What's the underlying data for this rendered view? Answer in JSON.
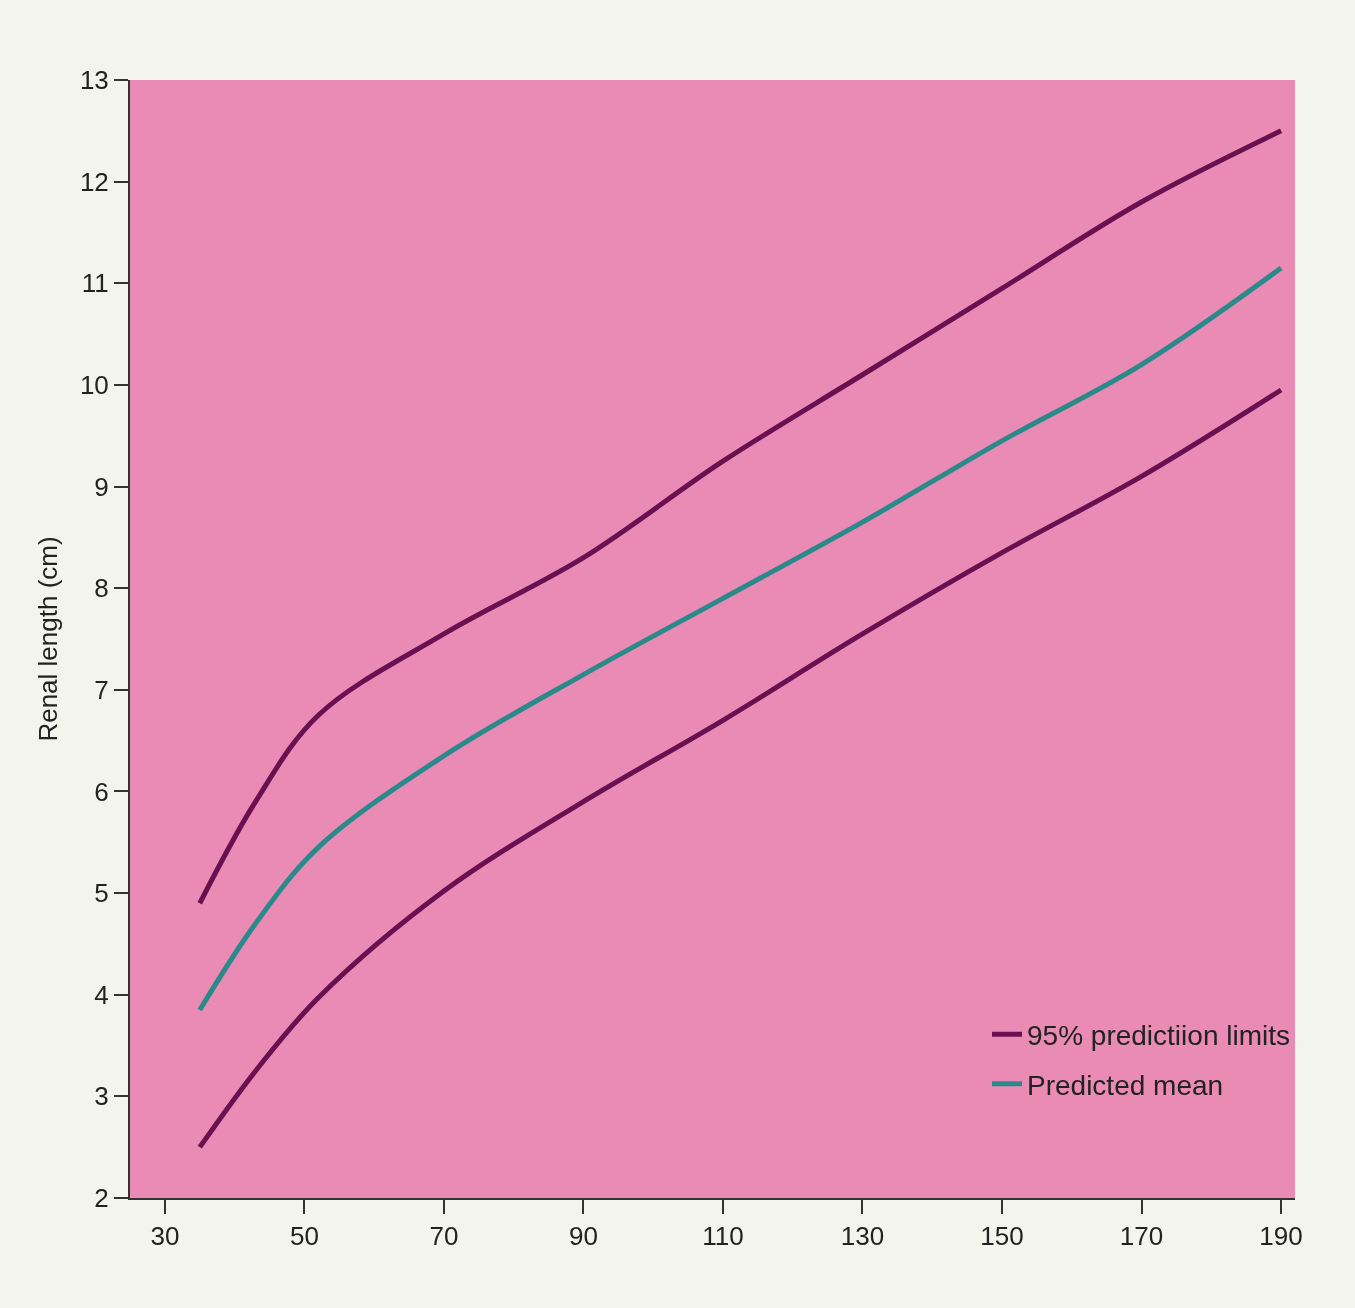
{
  "chart_data": {
    "type": "line",
    "ylabel": "Renal length (cm)",
    "x": [
      35,
      43,
      52,
      70,
      90,
      110,
      130,
      150,
      170,
      190
    ],
    "series": [
      {
        "name": "95% predictiion limits",
        "color": "#6a1050",
        "values": [
          4.9,
          5.9,
          6.75,
          7.55,
          8.3,
          9.25,
          10.1,
          10.95,
          11.8,
          12.5
        ]
      },
      {
        "name": "Predicted mean",
        "color": "#2a8a8a",
        "values": [
          3.85,
          4.7,
          5.45,
          6.35,
          7.15,
          7.9,
          8.65,
          9.45,
          10.2,
          11.15
        ]
      },
      {
        "color": "#6a1050",
        "values": [
          2.5,
          3.25,
          3.97,
          5.02,
          5.9,
          6.7,
          7.55,
          8.35,
          9.1,
          9.95
        ]
      }
    ],
    "xlim": [
      25,
      192
    ],
    "xticks": [
      30,
      50,
      70,
      90,
      110,
      130,
      150,
      170,
      190
    ],
    "ylim": [
      2,
      13
    ],
    "yticks": [
      2,
      3,
      4,
      5,
      6,
      7,
      8,
      9,
      10,
      11,
      12,
      13
    ],
    "legend": "bottom right",
    "line_style": "solid",
    "grid": false
  }
}
